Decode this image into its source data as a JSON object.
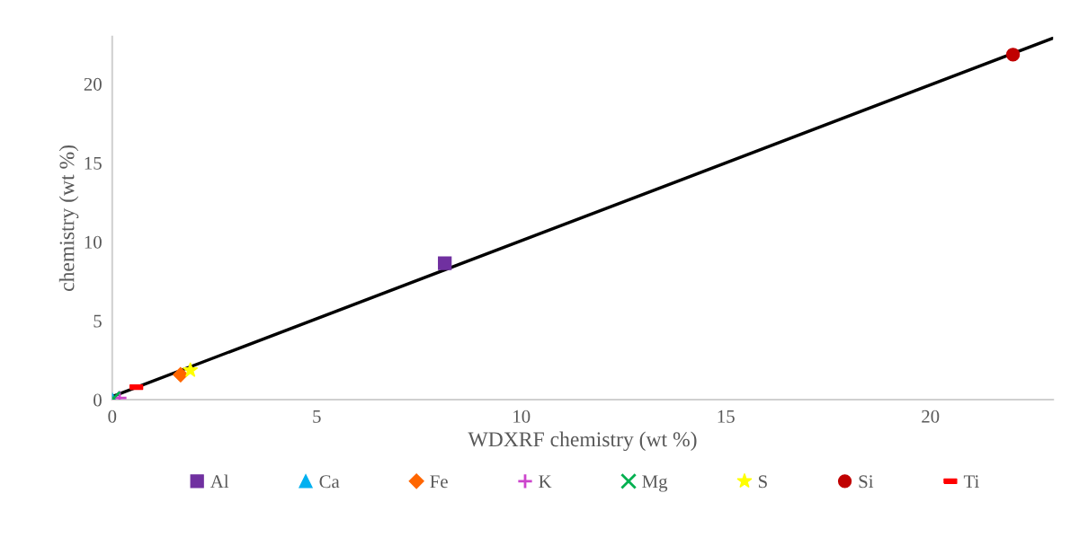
{
  "chart_data": {
    "type": "scatter",
    "xlabel": "WDXRF chemistry (wt %)",
    "ylabel": "chemistry (wt %)",
    "xlim": [
      0,
      23
    ],
    "ylim": [
      0,
      23
    ],
    "xticks": [
      0,
      5,
      10,
      15,
      20
    ],
    "yticks": [
      0,
      5,
      10,
      15,
      20
    ],
    "grid": false,
    "legend": "bottom",
    "series": [
      {
        "name": "Al",
        "color": "#7030a0",
        "marker": "square",
        "x": [
          8.13
        ],
        "values": [
          8.64
        ]
      },
      {
        "name": "Ca",
        "color": "#00b0f0",
        "marker": "triangle",
        "x": [
          0.0
        ],
        "values": [
          0.0
        ]
      },
      {
        "name": "Fe",
        "color": "#ff6600",
        "marker": "diamond",
        "x": [
          1.67
        ],
        "values": [
          1.58
        ]
      },
      {
        "name": "K",
        "color": "#cc44cc",
        "marker": "plus",
        "x": [
          0.18
        ],
        "values": [
          0.11
        ]
      },
      {
        "name": "Mg",
        "color": "#00b050",
        "marker": "cross",
        "x": [
          0.02
        ],
        "values": [
          0.06
        ]
      },
      {
        "name": "S",
        "color": "#ffff00",
        "marker": "star",
        "x": [
          1.91
        ],
        "values": [
          1.86
        ]
      },
      {
        "name": "Si",
        "color": "#c00000",
        "marker": "circle",
        "x": [
          22.02
        ],
        "values": [
          21.86
        ]
      },
      {
        "name": "Ti",
        "color": "#ff0000",
        "marker": "square",
        "x": [
          0.59
        ],
        "values": [
          0.79
        ]
      },
      {
        "type": "line",
        "color": "#000000",
        "x": [
          0,
          23
        ],
        "values": [
          0.2,
          22.9
        ]
      }
    ]
  }
}
